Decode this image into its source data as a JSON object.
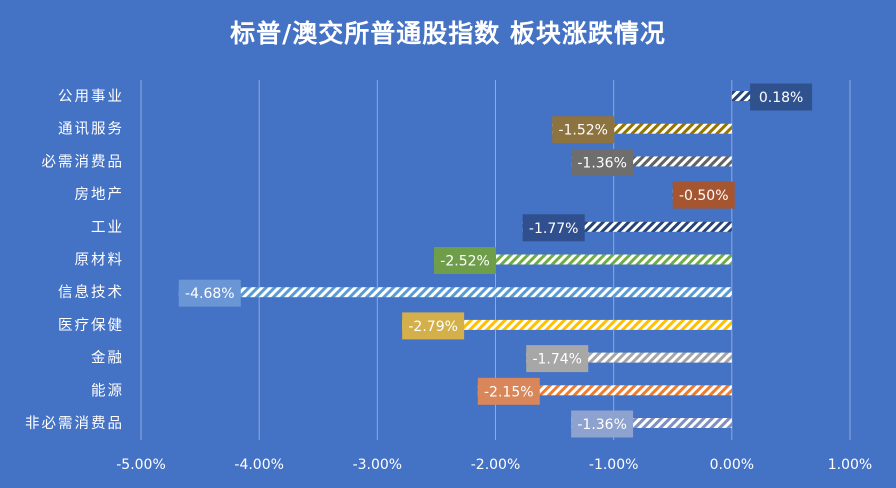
{
  "chart_data": {
    "type": "bar",
    "orientation": "horizontal",
    "title": "标普/澳交所普通股指数 板块涨跌情况",
    "xlabel": "",
    "ylabel": "",
    "xlim": [
      -5.0,
      1.0
    ],
    "x_ticks": [
      -5,
      -4,
      -3,
      -2,
      -1,
      0,
      1
    ],
    "tick_labels": [
      "-5.00%",
      "-4.00%",
      "-3.00%",
      "-2.00%",
      "-1.00%",
      "0.00%",
      "1.00%"
    ],
    "grid": true,
    "legend": "none",
    "categories": [
      "公用事业",
      "通讯服务",
      "必需消费品",
      "房地产",
      "工业",
      "原材料",
      "信息技术",
      "医疗保健",
      "金融",
      "能源",
      "非必需消费品"
    ],
    "values": [
      0.18,
      -1.52,
      -1.36,
      -0.5,
      -1.77,
      -2.52,
      -4.68,
      -2.79,
      -1.74,
      -2.15,
      -1.36
    ],
    "data_labels": [
      "0.18%",
      "-1.52%",
      "-1.36%",
      "-0.50%",
      "-1.77%",
      "-2.52%",
      "-4.68%",
      "-2.79%",
      "-1.74%",
      "-2.15%",
      "-1.36%"
    ],
    "bar_colors": [
      "#264478",
      "#997300",
      "#636363",
      "#9E480E",
      "#264478",
      "#70AD47",
      "#5B9BD5",
      "#FFC000",
      "#A5A5A5",
      "#ED7D31",
      "#7F8FBF"
    ],
    "label_colors": [
      "#2F528F",
      "#8C7340",
      "#6E6E6E",
      "#A5552F",
      "#2F4F8F",
      "#6F9E4A",
      "#6A96D5",
      "#D4B04A",
      "#A7A7A7",
      "#D9875A",
      "#8EA2CF"
    ],
    "background": "#4472C4",
    "text_color": "#FFFFFF"
  }
}
